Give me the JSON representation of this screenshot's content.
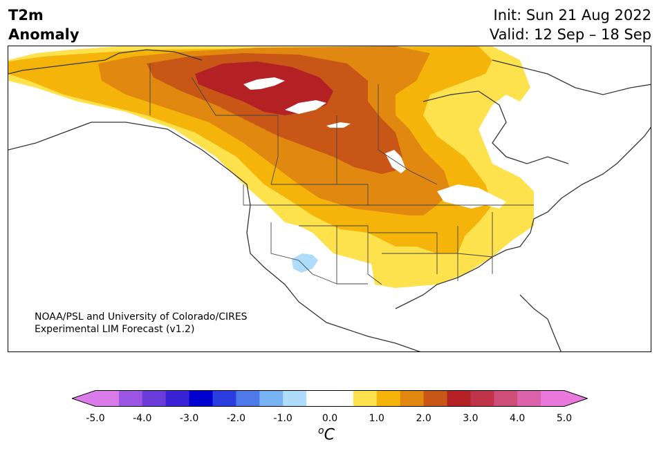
{
  "title": {
    "left_line1": "T2m",
    "left_line2": "Anomaly",
    "init": "Init: Sun 21 Aug 2022",
    "valid": "Valid: 12 Sep – 18 Sep"
  },
  "credit": {
    "line1": "NOAA/PSL and University of Colorado/CIRES",
    "line2": "Experimental LIM Forecast (v1.2)"
  },
  "colorbar": {
    "unit_symbol": "o",
    "unit_letter": "C",
    "ticks": [
      "-5.0",
      "-4.0",
      "-3.0",
      "-2.0",
      "-1.0",
      "0.0",
      "1.0",
      "2.0",
      "3.0",
      "4.0",
      "5.0"
    ],
    "colors": [
      "#d97be8",
      "#9c56e3",
      "#6a3ddb",
      "#3a23d6",
      "#0000cf",
      "#2a3ee0",
      "#4f78e8",
      "#77b2f3",
      "#aedcfa",
      "#ffffff",
      "#ffffff",
      "#fde14d",
      "#f4b40a",
      "#e0880f",
      "#c75617",
      "#b42125",
      "#bf3449",
      "#cc4e79",
      "#dc62ac",
      "#ea79dd"
    ],
    "min_color": "#d97be8",
    "max_color": "#ea79dd"
  },
  "map": {
    "region": "North America",
    "variable": "2m temperature anomaly",
    "land_color": "#ffffff",
    "water_color": "#ffffff"
  }
}
